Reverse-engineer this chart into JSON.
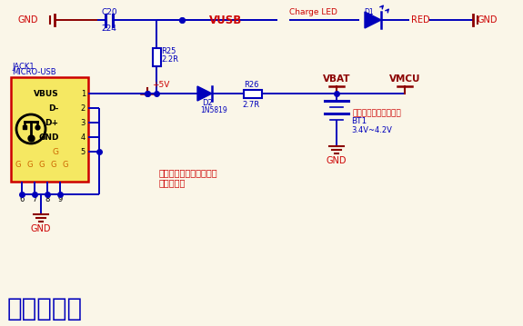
{
  "bg_color": "#faf6e8",
  "blue": "#0000bb",
  "red": "#cc0000",
  "dark_red": "#8b0000",
  "orange": "#cc6600",
  "title": "软开关方案",
  "title_color": "#0000bb",
  "title_fontsize": 20,
  "annotation1": "音箱方案建议客户都使用",
  "annotation2": "外部充电。",
  "annotation3": "电池电量主控内部检测"
}
